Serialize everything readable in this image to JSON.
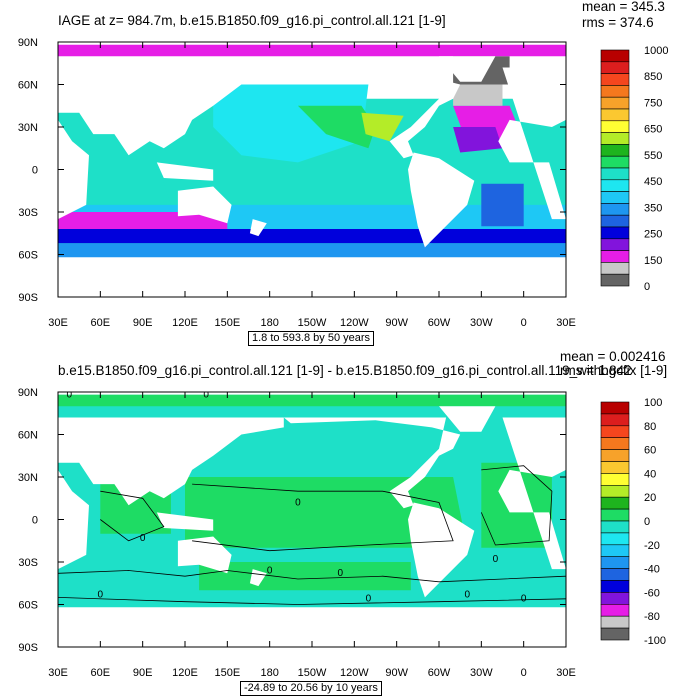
{
  "chart_data": [
    {
      "type": "heatmap",
      "title": "IAGE at z= 984.7m, b.e15.B1850.f09_g16.pi_control.all.121 [1-9]",
      "mean_label": "mean = 345.3",
      "rms_label": "rms = 374.6",
      "range_label": "1.8 to 593.8 by 50 years",
      "x_ticks": [
        "30E",
        "60E",
        "90E",
        "120E",
        "150E",
        "180",
        "150W",
        "120W",
        "90W",
        "60W",
        "30W",
        "0",
        "30E"
      ],
      "y_ticks": [
        "90N",
        "60N",
        "30N",
        "0",
        "30S",
        "60S",
        "90S"
      ],
      "xlim": [
        30,
        390
      ],
      "ylim": [
        -90,
        90
      ],
      "colorbar": {
        "labels": [
          "1000",
          "850",
          "750",
          "650",
          "550",
          "450",
          "350",
          "250",
          "150",
          "0"
        ],
        "colors": [
          "#b80000",
          "#dc1e1e",
          "#f5461e",
          "#f5781e",
          "#f7a22a",
          "#fbc830",
          "#ffff33",
          "#b4ec28",
          "#1eb41e",
          "#1edc64",
          "#1ee0c8",
          "#1ee6f0",
          "#1ec8f5",
          "#1e96f0",
          "#1e64e0",
          "#0000dc",
          "#8214dc",
          "#e61ee6",
          "#c8c8c8",
          "#646464"
        ]
      },
      "regions": [
        {
          "name": "arctic",
          "color": "#e61ee6"
        },
        {
          "name": "southern-ocean-outer",
          "color": "#e61ee6"
        },
        {
          "name": "southern-ocean-inner",
          "color": "#0000dc"
        },
        {
          "name": "north-atlantic",
          "color": "#646464"
        },
        {
          "name": "pacific-interior",
          "color": "#1ee0c8"
        },
        {
          "name": "north-pacific",
          "color": "#1edc64"
        }
      ]
    },
    {
      "type": "heatmap",
      "title": "b.e15.B1850.f09_g16.pi_control.all.121 [1-9] - b.e15.B1850.f09_g16.pi_control.all.119_withbgcfix [1-9]",
      "mean_label": "mean = 0.002416",
      "rms_label": "rms = 1.842",
      "range_label": "-24.89 to 20.56 by 10 years",
      "x_ticks": [
        "30E",
        "60E",
        "90E",
        "120E",
        "150E",
        "180",
        "150W",
        "120W",
        "90W",
        "60W",
        "30W",
        "0",
        "30E"
      ],
      "y_ticks": [
        "90N",
        "60N",
        "30N",
        "0",
        "30S",
        "60S",
        "90S"
      ],
      "xlim": [
        30,
        390
      ],
      "ylim": [
        -90,
        90
      ],
      "contour_label": "0",
      "colorbar": {
        "labels": [
          "100",
          "80",
          "60",
          "40",
          "20",
          "0",
          "-20",
          "-40",
          "-60",
          "-80",
          "-100"
        ],
        "colors": [
          "#b80000",
          "#dc1e1e",
          "#f5461e",
          "#f5781e",
          "#f7a22a",
          "#fbc830",
          "#ffff33",
          "#b4ec28",
          "#1eb41e",
          "#1edc64",
          "#1ee0c8",
          "#1ee6f0",
          "#1ec8f5",
          "#1e96f0",
          "#1e64e0",
          "#0000dc",
          "#8214dc",
          "#e61ee6",
          "#c8c8c8",
          "#646464"
        ]
      }
    }
  ]
}
